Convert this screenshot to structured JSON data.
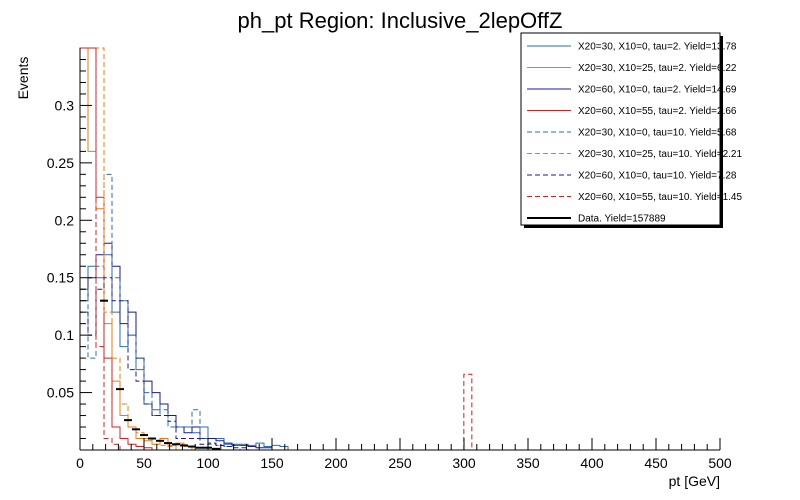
{
  "chart_data": {
    "type": "histogram",
    "title": "ph_pt Region: Inclusive_2lepOffZ",
    "xlabel": "pt [GeV]",
    "ylabel": "Events",
    "xlim": [
      0,
      500
    ],
    "ylim": [
      0,
      0.35
    ],
    "log_y": false,
    "grid": false,
    "legend_position": "top-right",
    "bin_width": 6.25,
    "x_ticks": [
      0,
      50,
      100,
      150,
      200,
      250,
      300,
      350,
      400,
      450,
      500
    ],
    "y_ticks": [
      0.05,
      0.1,
      0.15,
      0.2,
      0.25,
      0.3
    ],
    "series": [
      {
        "name": "X20=30, X10=0, tau=2. Yield=13.78",
        "color": "#2a6db5",
        "dashed": false,
        "values": [
          0.14,
          0.16,
          0.15,
          0.17,
          0.12,
          0.09,
          0.1,
          0.07,
          0.04,
          0.035,
          0.04,
          0.03,
          0.02,
          0.02,
          0.015,
          0.02,
          0.01,
          0.01,
          0.005,
          0.005,
          0.005,
          0.004,
          0.006,
          0.003,
          0.004,
          0.003,
          0,
          0,
          0,
          0,
          0,
          0,
          0,
          0,
          0,
          0,
          0,
          0,
          0,
          0,
          0,
          0,
          0,
          0,
          0,
          0,
          0,
          0,
          0,
          0,
          0,
          0,
          0,
          0,
          0,
          0,
          0,
          0,
          0,
          0,
          0,
          0,
          0,
          0,
          0,
          0,
          0,
          0,
          0,
          0,
          0,
          0,
          0,
          0,
          0,
          0,
          0,
          0,
          0,
          0
        ]
      },
      {
        "name": "X20=30, X10=25, tau=2. Yield=6.22",
        "color": "#f07a10",
        "dashed": false,
        "values": [
          0.35,
          0.26,
          0.21,
          0.11,
          0.06,
          0.03,
          0.02,
          0.01,
          0.008,
          0.005,
          0.01,
          0.004,
          0.006,
          0.003,
          0,
          0,
          0,
          0,
          0,
          0,
          0,
          0,
          0,
          0,
          0,
          0,
          0,
          0,
          0,
          0,
          0,
          0,
          0,
          0,
          0,
          0,
          0,
          0,
          0,
          0,
          0,
          0,
          0,
          0,
          0,
          0,
          0,
          0,
          0,
          0,
          0,
          0,
          0,
          0,
          0,
          0,
          0,
          0,
          0,
          0,
          0,
          0,
          0,
          0,
          0,
          0,
          0,
          0,
          0,
          0,
          0,
          0,
          0,
          0,
          0,
          0,
          0,
          0,
          0,
          0
        ]
      },
      {
        "name": "X20=60, X10=0, tau=2. Yield=14.69",
        "color": "#1a1a8c",
        "dashed": false,
        "values": [
          0.13,
          0.15,
          0.17,
          0.18,
          0.16,
          0.11,
          0.12,
          0.08,
          0.06,
          0.05,
          0.04,
          0.03,
          0.02,
          0.015,
          0.02,
          0.01,
          0.01,
          0.008,
          0.006,
          0.004,
          0.004,
          0.003,
          0.002,
          0.002,
          0,
          0,
          0,
          0,
          0,
          0,
          0,
          0,
          0,
          0,
          0,
          0,
          0,
          0,
          0,
          0,
          0,
          0,
          0,
          0,
          0,
          0,
          0,
          0,
          0,
          0,
          0,
          0,
          0,
          0,
          0,
          0,
          0,
          0,
          0,
          0,
          0,
          0,
          0,
          0,
          0,
          0,
          0,
          0,
          0,
          0,
          0,
          0,
          0,
          0,
          0,
          0,
          0,
          0,
          0,
          0
        ]
      },
      {
        "name": "X20=60, X10=55, tau=2. Yield=2.66",
        "color": "#d42020",
        "dashed": false,
        "values": [
          0.35,
          0.35,
          0.22,
          0.08,
          0.02,
          0.01,
          0.005,
          0.003,
          0.002,
          0,
          0,
          0,
          0,
          0,
          0,
          0,
          0,
          0,
          0,
          0,
          0,
          0,
          0,
          0,
          0,
          0,
          0,
          0,
          0,
          0,
          0,
          0,
          0,
          0,
          0,
          0,
          0,
          0,
          0,
          0,
          0,
          0,
          0,
          0,
          0,
          0,
          0,
          0,
          0,
          0,
          0,
          0,
          0,
          0,
          0,
          0,
          0,
          0,
          0,
          0,
          0,
          0,
          0,
          0,
          0,
          0,
          0,
          0,
          0,
          0,
          0,
          0,
          0,
          0,
          0,
          0,
          0,
          0,
          0,
          0
        ]
      },
      {
        "name": "X20=30, X10=0, tau=10. Yield=5.68",
        "color": "#2a6db5",
        "dashed": true,
        "values": [
          0.14,
          0.08,
          0.16,
          0.24,
          0.15,
          0.13,
          0.1,
          0.08,
          0.05,
          0.03,
          0.035,
          0.02,
          0.02,
          0.02,
          0.035,
          0.01,
          0.005,
          0.004,
          0.003,
          0.004,
          0,
          0,
          0,
          0,
          0,
          0,
          0,
          0,
          0,
          0,
          0,
          0,
          0,
          0,
          0,
          0,
          0,
          0,
          0,
          0,
          0,
          0,
          0,
          0,
          0,
          0,
          0,
          0,
          0,
          0,
          0,
          0,
          0,
          0,
          0,
          0,
          0,
          0,
          0,
          0,
          0,
          0,
          0,
          0,
          0,
          0,
          0,
          0,
          0,
          0,
          0,
          0,
          0,
          0,
          0,
          0,
          0,
          0,
          0,
          0
        ]
      },
      {
        "name": "X20=30, X10=25, tau=10. Yield=2.21",
        "color": "#f07a10",
        "dashed": true,
        "values": [
          0.35,
          0.35,
          0.35,
          0.12,
          0.08,
          0.04,
          0.02,
          0.015,
          0.01,
          0.005,
          0.004,
          0.003,
          0,
          0,
          0,
          0,
          0,
          0,
          0,
          0,
          0,
          0,
          0,
          0,
          0,
          0,
          0,
          0,
          0,
          0,
          0,
          0,
          0,
          0,
          0,
          0,
          0,
          0,
          0,
          0,
          0,
          0,
          0,
          0,
          0,
          0,
          0,
          0,
          0,
          0,
          0,
          0,
          0,
          0,
          0,
          0,
          0,
          0,
          0,
          0,
          0,
          0,
          0,
          0,
          0,
          0,
          0,
          0,
          0,
          0,
          0,
          0,
          0,
          0,
          0,
          0,
          0,
          0,
          0,
          0
        ]
      },
      {
        "name": "X20=60, X10=0, tau=10. Yield=7.28",
        "color": "#1a1a8c",
        "dashed": true,
        "values": [
          0.12,
          0.1,
          0.14,
          0.15,
          0.13,
          0.13,
          0.07,
          0.06,
          0.04,
          0.03,
          0.03,
          0.025,
          0.01,
          0.01,
          0.01,
          0.005,
          0.006,
          0.004,
          0.003,
          0.002,
          0.002,
          0,
          0,
          0,
          0,
          0,
          0,
          0,
          0,
          0,
          0,
          0,
          0,
          0,
          0,
          0,
          0,
          0,
          0,
          0,
          0,
          0,
          0,
          0,
          0,
          0,
          0,
          0,
          0,
          0,
          0,
          0,
          0,
          0,
          0,
          0,
          0,
          0,
          0,
          0,
          0,
          0,
          0,
          0,
          0,
          0,
          0,
          0,
          0,
          0,
          0,
          0,
          0,
          0,
          0,
          0,
          0,
          0,
          0,
          0
        ]
      },
      {
        "name": "X20=60, X10=55, tau=10. Yield=1.45",
        "color": "#d42020",
        "dashed": true,
        "values": [
          0.35,
          0.35,
          0.09,
          0.01,
          0.005,
          0,
          0,
          0,
          0,
          0,
          0,
          0,
          0,
          0,
          0,
          0,
          0,
          0,
          0,
          0,
          0,
          0,
          0,
          0,
          0,
          0,
          0,
          0,
          0,
          0,
          0,
          0,
          0,
          0,
          0,
          0,
          0,
          0,
          0,
          0,
          0,
          0,
          0,
          0,
          0,
          0,
          0,
          0,
          0,
          0,
          0,
          0,
          0,
          0,
          0,
          0,
          0,
          0,
          0,
          0,
          0,
          0,
          0,
          0,
          0,
          0,
          0,
          0,
          0,
          0,
          0,
          0,
          0,
          0,
          0,
          0,
          0,
          0,
          0,
          0
        ],
        "extra": [
          {
            "x": 303,
            "y": 0.066
          }
        ]
      }
    ],
    "data": {
      "name": "Data. Yield=157889",
      "color": "#000000",
      "points": [
        {
          "x": 18.75,
          "y": 0.13
        },
        {
          "x": 31.25,
          "y": 0.053
        },
        {
          "x": 37.5,
          "y": 0.026
        },
        {
          "x": 43.75,
          "y": 0.018
        },
        {
          "x": 50,
          "y": 0.013
        },
        {
          "x": 56.25,
          "y": 0.01
        },
        {
          "x": 62.5,
          "y": 0.008
        },
        {
          "x": 68.75,
          "y": 0.006
        },
        {
          "x": 75,
          "y": 0.005
        },
        {
          "x": 81.25,
          "y": 0.004
        },
        {
          "x": 87.5,
          "y": 0.003
        },
        {
          "x": 93.75,
          "y": 0.002
        },
        {
          "x": 100,
          "y": 0.002
        },
        {
          "x": 106.25,
          "y": 0.001
        }
      ]
    }
  }
}
